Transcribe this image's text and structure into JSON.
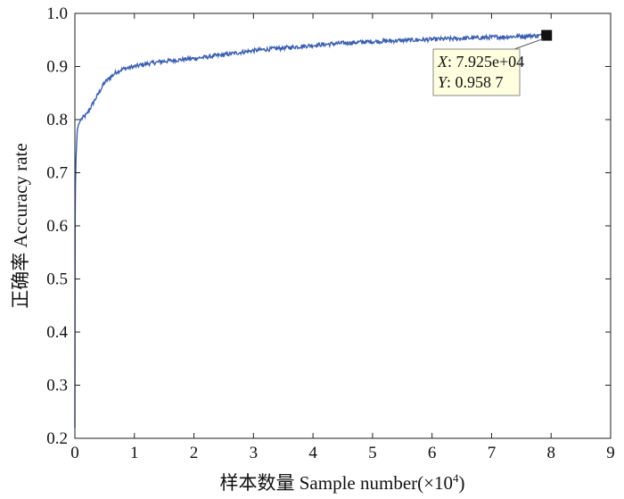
{
  "chart_data": {
    "type": "line",
    "title": "",
    "xlabel": "样本数量 Sample number(×10",
    "xlabel_sup": "4",
    "xlabel_tail": ")",
    "ylabel": "正确率 Accuracy rate",
    "xlim": [
      0,
      9
    ],
    "ylim": [
      0.2,
      1.0
    ],
    "x_ticks": [
      "0",
      "1",
      "2",
      "3",
      "4",
      "5",
      "6",
      "7",
      "8",
      "9"
    ],
    "y_ticks": [
      "0.2",
      "0.3",
      "0.4",
      "0.5",
      "0.6",
      "0.7",
      "0.8",
      "0.9",
      "1.0"
    ],
    "grid": false,
    "series": [
      {
        "color": "#3a5fb0",
        "x": [
          0,
          0.005,
          0.01,
          0.02,
          0.04,
          0.06,
          0.08,
          0.1,
          0.15,
          0.2,
          0.3,
          0.4,
          0.5,
          0.6,
          0.7,
          0.8,
          1.0,
          1.2,
          1.5,
          2.0,
          2.5,
          3.0,
          3.5,
          4.0,
          4.5,
          5.0,
          5.5,
          6.0,
          6.5,
          7.0,
          7.5,
          7.925
        ],
        "y": [
          0.22,
          0.62,
          0.68,
          0.73,
          0.78,
          0.79,
          0.795,
          0.8,
          0.805,
          0.81,
          0.83,
          0.85,
          0.87,
          0.88,
          0.89,
          0.895,
          0.9,
          0.905,
          0.91,
          0.915,
          0.922,
          0.93,
          0.935,
          0.94,
          0.944,
          0.947,
          0.949,
          0.951,
          0.953,
          0.955,
          0.957,
          0.9587
        ]
      }
    ],
    "datatip": {
      "x_label": "X",
      "x_value": ": 7.925e+04",
      "y_label": "Y",
      "y_value": ": 0.958 7",
      "x": 7.925,
      "y": 0.9587
    }
  }
}
